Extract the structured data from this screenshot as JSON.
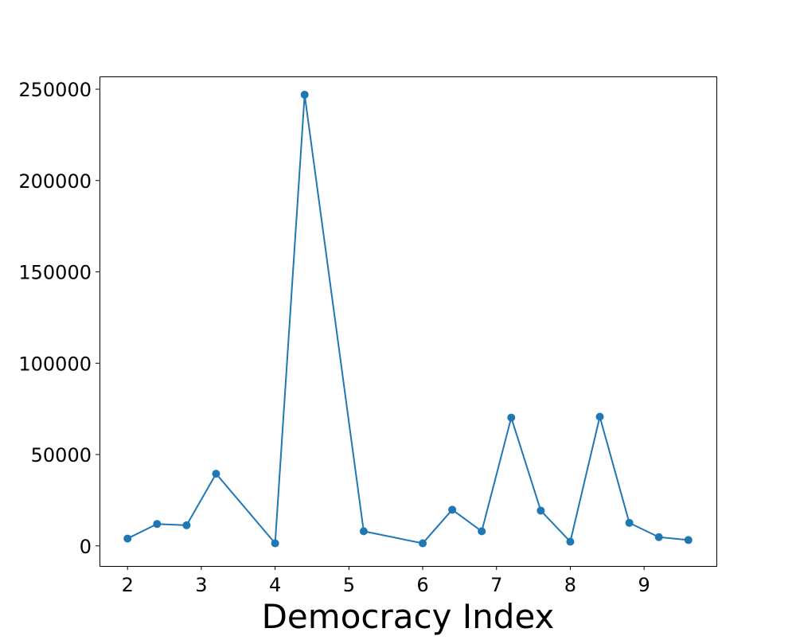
{
  "chart_data": {
    "type": "line",
    "title": "",
    "xlabel": "Democracy Index",
    "ylabel": "",
    "x": [
      2.0,
      2.4,
      2.8,
      3.2,
      4.0,
      4.4,
      5.2,
      6.0,
      6.4,
      6.8,
      7.2,
      7.6,
      8.0,
      8.4,
      8.8,
      9.2,
      9.6
    ],
    "series": [
      {
        "name": "",
        "values": [
          4000,
          12000,
          11300,
          39500,
          1400,
          247000,
          8000,
          1400,
          19800,
          8000,
          70200,
          19300,
          2300,
          70700,
          12600,
          4800,
          3200
        ]
      }
    ],
    "xlim": [
      1.62,
      9.98
    ],
    "ylim": [
      -11000,
      257000
    ],
    "xticks": [
      2,
      3,
      4,
      5,
      6,
      7,
      8,
      9
    ],
    "yticks": [
      0,
      50000,
      100000,
      150000,
      200000,
      250000
    ],
    "grid": false,
    "legend": "none",
    "colors": {
      "line": "#1f77b4",
      "axes": "#000000"
    }
  }
}
